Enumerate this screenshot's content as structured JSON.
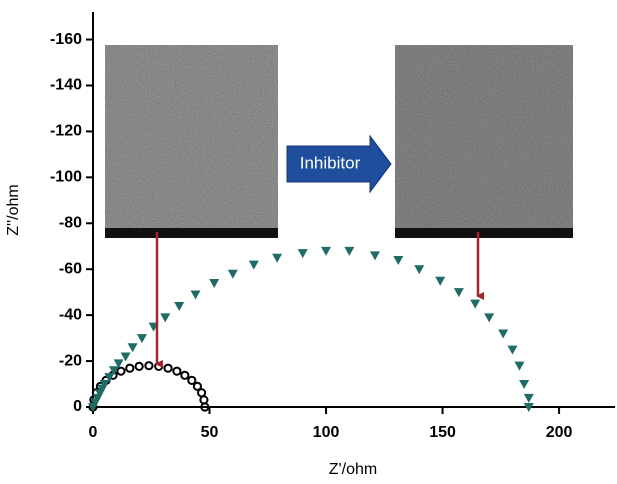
{
  "chart_data": {
    "type": "scatter",
    "xlabel": "Z'/ohm",
    "ylabel": "Z''/ohm",
    "annotation": "Inhibitor",
    "xlim": [
      0,
      224
    ],
    "ylim": [
      0,
      -172
    ],
    "xticks": [
      0,
      50,
      100,
      150,
      200
    ],
    "yticks": [
      0,
      -20,
      -40,
      -60,
      -80,
      -100,
      -120,
      -140,
      -160
    ],
    "series": [
      {
        "color": "#000000",
        "marker": "circle",
        "x": [
          0,
          0.36,
          1.45,
          3.2,
          5.6,
          8.6,
          12,
          15.8,
          19.8,
          24,
          28.2,
          32.2,
          36,
          39.4,
          42.4,
          44.8,
          46.6,
          47.6,
          48
        ],
        "values": [
          0,
          -3.1,
          -6.2,
          -9,
          -11.6,
          -13.8,
          -15.6,
          -16.9,
          -17.7,
          -18,
          -17.7,
          -16.9,
          -15.6,
          -13.8,
          -11.6,
          -9,
          -6.2,
          -3.1,
          0
        ]
      },
      {
        "color": "#1f6b66",
        "marker": "triangle-down",
        "x": [
          0,
          1,
          2,
          3,
          4,
          5,
          7,
          9,
          11,
          14,
          17,
          21,
          26,
          31,
          37,
          44,
          52,
          60,
          69,
          79,
          90,
          100,
          110,
          121,
          131,
          140,
          149,
          157,
          164,
          170,
          176,
          180,
          183,
          185,
          187,
          187
        ],
        "values": [
          0,
          -2,
          -4,
          -6,
          -8,
          -10,
          -13,
          -16,
          -19,
          -22,
          -26,
          -30,
          -35,
          -39,
          -44,
          -49,
          -54,
          -58,
          -62,
          -65,
          -67,
          -68,
          -68,
          -66,
          -64,
          -60,
          -55,
          -50,
          -45,
          -39,
          -32,
          -25,
          -18,
          -10,
          -4,
          0
        ]
      }
    ]
  }
}
